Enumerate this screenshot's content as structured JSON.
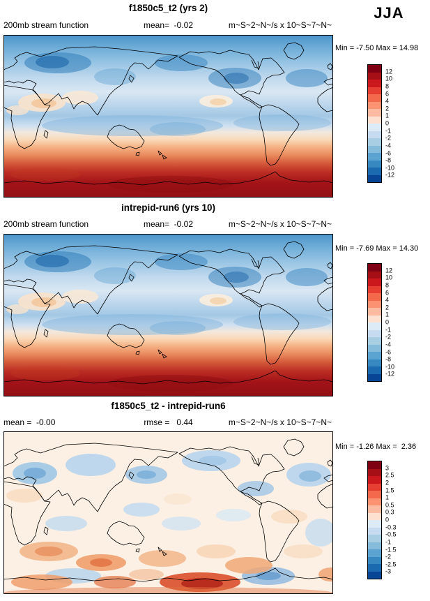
{
  "season_label": "JJA",
  "panels": [
    {
      "title": "f1850c5_t2 (yrs 2)",
      "left_label": "200mb stream function",
      "center_label": "mean=  -0.02",
      "units_label": "m~S~2~N~/s x 10~S~7~N~",
      "minmax": "Min = -7.50 Max = 14.98",
      "colorbar": {
        "colors": [
          "#7f0012",
          "#a50f15",
          "#cb181d",
          "#e63e30",
          "#f4694b",
          "#fb9272",
          "#fcbba1",
          "#fde0d0",
          "#dcebf6",
          "#c6dbef",
          "#a8cee4",
          "#85bcdb",
          "#5ba3d0",
          "#3787c0",
          "#1b69af",
          "#084594"
        ],
        "labels": [
          "12",
          "10",
          "8",
          "6",
          "4",
          "2",
          "1",
          "0",
          "-1",
          "-2",
          "-4",
          "-6",
          "-8",
          "-10",
          "-12"
        ]
      }
    },
    {
      "title": "intrepid-run6 (yrs 10)",
      "left_label": "200mb stream function",
      "center_label": "mean=  -0.02",
      "units_label": "m~S~2~N~/s x 10~S~7~N~",
      "minmax": "Min = -7.69 Max = 14.30",
      "colorbar": {
        "colors": [
          "#7f0012",
          "#a50f15",
          "#cb181d",
          "#e63e30",
          "#f4694b",
          "#fb9272",
          "#fcbba1",
          "#fde0d0",
          "#dcebf6",
          "#c6dbef",
          "#a8cee4",
          "#85bcdb",
          "#5ba3d0",
          "#3787c0",
          "#1b69af",
          "#084594"
        ],
        "labels": [
          "12",
          "10",
          "8",
          "6",
          "4",
          "2",
          "1",
          "0",
          "-1",
          "-2",
          "-4",
          "-6",
          "-8",
          "-10",
          "-12"
        ]
      }
    },
    {
      "title": "f1850c5_t2 - intrepid-run6",
      "left_label": "mean =  -0.00",
      "center_label": "rmse =   0.44",
      "units_label": "m~S~2~N~/s x 10~S~7~N~",
      "minmax": "Min = -1.26 Max =  2.36",
      "colorbar": {
        "colors": [
          "#7f0012",
          "#a50f15",
          "#cb181d",
          "#e63e30",
          "#f4694b",
          "#fb9272",
          "#fcbba1",
          "#fde0d0",
          "#dcebf6",
          "#c6dbef",
          "#a8cee4",
          "#85bcdb",
          "#5ba3d0",
          "#3787c0",
          "#1b69af",
          "#084594"
        ],
        "labels": [
          "3",
          "2.5",
          "2",
          "1.5",
          "1",
          "0.5",
          "0.3",
          "0",
          "-0.3",
          "-0.5",
          "-1",
          "-1.5",
          "-2",
          "-2.5",
          "-3"
        ]
      }
    }
  ],
  "chart_data": [
    {
      "type": "heatmap",
      "subtype": "filled-contour-global-map",
      "title": "f1850c5_t2 (yrs 2)",
      "variable": "200mb stream function",
      "season": "JJA",
      "units": "m~S~2~N~/s x 10~S~7~N~",
      "mean": -0.02,
      "min": -7.5,
      "max": 14.98,
      "contour_levels": [
        -12,
        -10,
        -8,
        -6,
        -4,
        -2,
        -1,
        0,
        1,
        2,
        4,
        6,
        8,
        10,
        12
      ],
      "legend_position": "right",
      "pattern_summary": "Negative (blue) stream function across Northern Hemisphere with minima over midlatitudes, weak positive (cream/orange) patches in NH subtropics, strongly positive (red) band over Southern Hemisphere midlatitudes to pole"
    },
    {
      "type": "heatmap",
      "subtype": "filled-contour-global-map",
      "title": "intrepid-run6 (yrs 10)",
      "variable": "200mb stream function",
      "season": "JJA",
      "units": "m~S~2~N~/s x 10~S~7~N~",
      "mean": -0.02,
      "min": -7.69,
      "max": 14.3,
      "contour_levels": [
        -12,
        -10,
        -8,
        -6,
        -4,
        -2,
        -1,
        0,
        1,
        2,
        4,
        6,
        8,
        10,
        12
      ],
      "legend_position": "right",
      "pattern_summary": "Nearly identical to f1850c5_t2 panel: blue NH, red SH zonal bands"
    },
    {
      "type": "heatmap",
      "subtype": "filled-contour-global-map-difference",
      "title": "f1850c5_t2 - intrepid-run6",
      "variable": "200mb stream function difference",
      "season": "JJA",
      "units": "m~S~2~N~/s x 10~S~7~N~",
      "mean": 0.0,
      "rmse": 0.44,
      "min": -1.26,
      "max": 2.36,
      "contour_levels": [
        -3,
        -2.5,
        -2,
        -1.5,
        -1,
        -0.5,
        -0.3,
        0,
        0.3,
        0.5,
        1,
        1.5,
        2,
        2.5,
        3
      ],
      "legend_position": "right",
      "pattern_summary": "Near-zero differences with scattered weak blue cells in NH, orange/red anomalies in SH midlatitudes, strongest positive blob south of South America"
    }
  ]
}
